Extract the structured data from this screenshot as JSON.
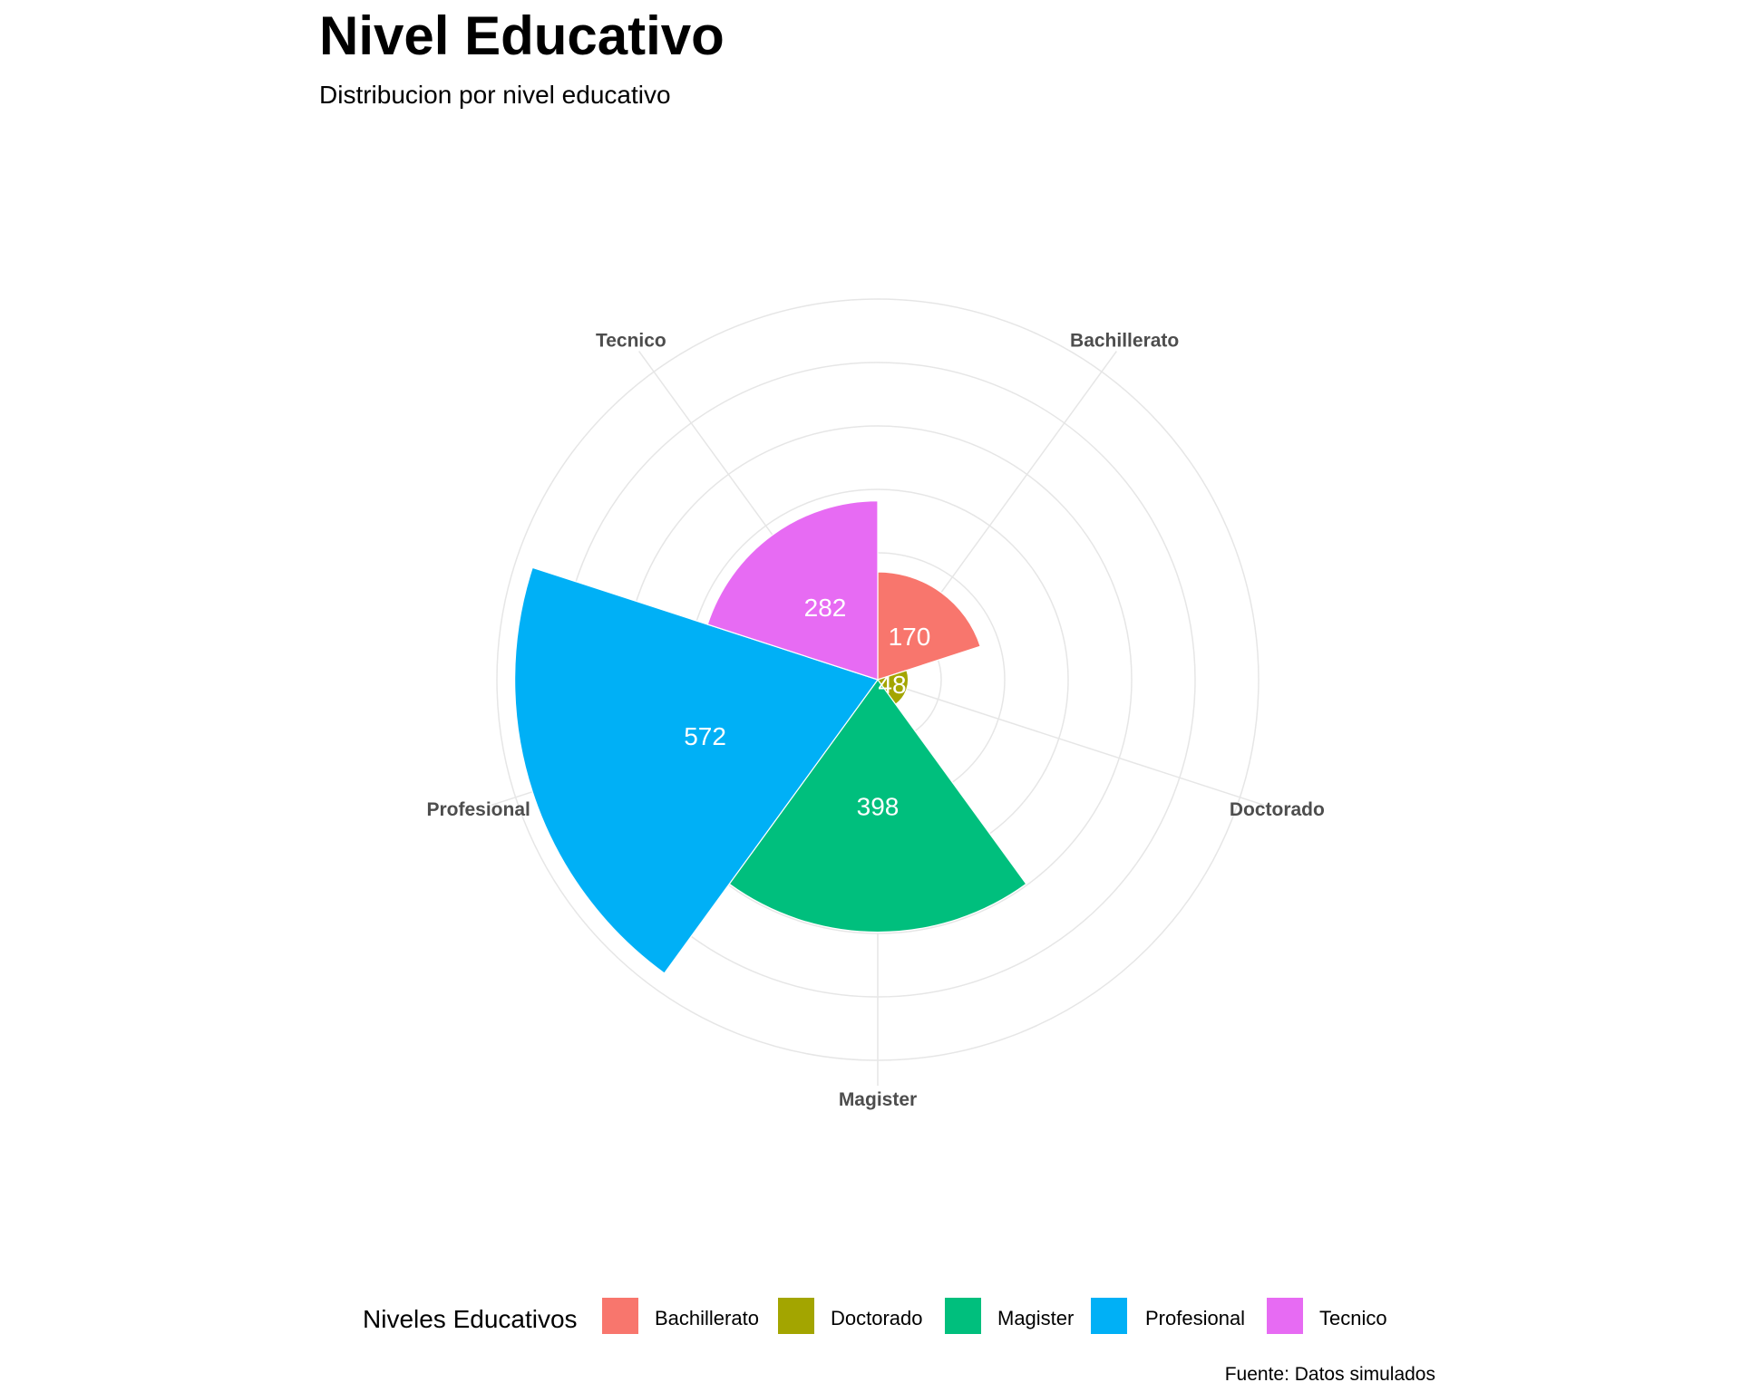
{
  "title": "Nivel Educativo",
  "subtitle": "Distribucion por nivel educativo",
  "caption": "Fuente: Datos simulados",
  "legend": {
    "title": "Niveles Educativos",
    "position": "bottom"
  },
  "chart_data": {
    "type": "bar",
    "coord": "polar",
    "categories": [
      "Bachillerato",
      "Doctorado",
      "Magister",
      "Profesional",
      "Tecnico"
    ],
    "values": [
      170,
      48,
      398,
      572,
      282
    ],
    "colors": [
      "#F8766D",
      "#A3A500",
      "#00BF7D",
      "#00B0F6",
      "#E76BF3"
    ],
    "title": "Nivel Educativo",
    "subtitle": "Distribucion por nivel educativo",
    "xlabel": "",
    "ylabel": "",
    "ylim": [
      0,
      640
    ],
    "grid": true,
    "data_labels": true,
    "legend": "bottom"
  }
}
